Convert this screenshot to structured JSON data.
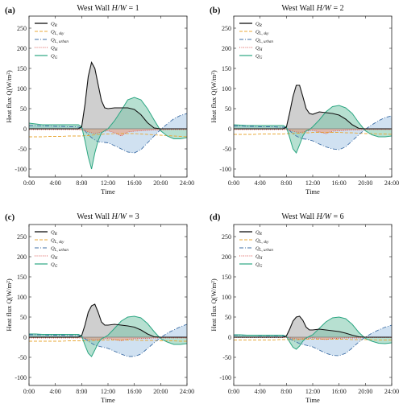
{
  "colors": {
    "QR": "#111111",
    "QL_sky": "#e8a93a",
    "QL_urban": "#3f6fa6",
    "QH": "#d9534f",
    "QG": "#2ca682",
    "QR_fill": "#a8a8a8",
    "QL_urban_fill": "#a9c9e6",
    "QG_fill": "#7cc7ac",
    "QH_fill": "#e8a387"
  },
  "chart_data": [
    {
      "type": "line",
      "letter": "(a)",
      "title_prefix": "West Wall ",
      "title_ratio": "H/W",
      "title_suffix": " = 1",
      "xlabel": "Time",
      "ylabel": "Heat flux Q(W/m²)",
      "xlim": [
        0,
        24
      ],
      "ylim": [
        -120,
        280
      ],
      "xticks": [
        "0:00",
        "4:00",
        "8:00",
        "12:00",
        "16:00",
        "20:00",
        "24:00"
      ],
      "yticks": [
        -100,
        -50,
        0,
        50,
        100,
        150,
        200,
        250
      ],
      "legend": [
        "QR",
        "QL, sky",
        "QL, urban",
        "QH",
        "QG"
      ],
      "x": [
        0,
        1,
        2,
        3,
        4,
        5,
        6,
        7,
        7.5,
        8,
        8.5,
        9,
        9.5,
        10,
        10.5,
        11,
        11.5,
        12,
        13,
        14,
        15,
        16,
        17,
        18,
        19,
        20,
        21,
        22,
        23,
        24
      ],
      "series": [
        {
          "key": "QR",
          "values": [
            0,
            0,
            0,
            0,
            0,
            0,
            0,
            0,
            0,
            5,
            60,
            130,
            165,
            150,
            110,
            70,
            52,
            50,
            52,
            52,
            52,
            48,
            35,
            15,
            2,
            0,
            0,
            0,
            0,
            0
          ]
        },
        {
          "key": "QL_sky",
          "values": [
            -20,
            -20,
            -20,
            -19,
            -19,
            -19,
            -18,
            -18,
            -18,
            -18,
            -17,
            -17,
            -16,
            -15,
            -14,
            -14,
            -13,
            -13,
            -12,
            -12,
            -12,
            -12,
            -13,
            -14,
            -15,
            -16,
            -17,
            -18,
            -19,
            -20
          ]
        },
        {
          "key": "QL_urban",
          "values": [
            8,
            8,
            7,
            7,
            6,
            6,
            5,
            5,
            4,
            3,
            -5,
            -15,
            -22,
            -28,
            -32,
            -33,
            -34,
            -35,
            -42,
            -50,
            -58,
            -60,
            -52,
            -35,
            -18,
            -2,
            12,
            25,
            33,
            38
          ]
        },
        {
          "key": "QH",
          "values": [
            -2,
            -2,
            -2,
            -2,
            -2,
            -2,
            -2,
            -2,
            -2,
            -3,
            -5,
            -8,
            -10,
            -12,
            -10,
            -8,
            -6,
            -5,
            -10,
            -18,
            -8,
            -6,
            -5,
            -4,
            -3,
            -3,
            -2,
            -2,
            -2,
            -2
          ]
        },
        {
          "key": "QG",
          "values": [
            14,
            12,
            10,
            10,
            10,
            10,
            10,
            10,
            10,
            5,
            -30,
            -70,
            -100,
            -60,
            -30,
            -10,
            -5,
            0,
            20,
            45,
            72,
            78,
            72,
            50,
            22,
            -5,
            -18,
            -25,
            -25,
            -22
          ]
        }
      ]
    },
    {
      "type": "line",
      "letter": "(b)",
      "title_prefix": "West Wall ",
      "title_ratio": "H/W",
      "title_suffix": " = 2",
      "xlabel": "Time",
      "ylabel": "Heat flux Q(W/m²)",
      "xlim": [
        0,
        24
      ],
      "ylim": [
        -120,
        280
      ],
      "xticks": [
        "0:00",
        "4:00",
        "8:00",
        "12:00",
        "16:00",
        "20:00",
        "24:00"
      ],
      "yticks": [
        -100,
        -50,
        0,
        50,
        100,
        150,
        200,
        250
      ],
      "legend": [
        "QR",
        "QL, sky",
        "QL, urban",
        "QH",
        "QG"
      ],
      "x": [
        0,
        1,
        2,
        3,
        4,
        5,
        6,
        7,
        7.5,
        8,
        8.5,
        9,
        9.5,
        10,
        10.5,
        11,
        11.5,
        12,
        13,
        14,
        15,
        16,
        17,
        18,
        19,
        20,
        21,
        22,
        23,
        24
      ],
      "series": [
        {
          "key": "QR",
          "values": [
            0,
            0,
            0,
            0,
            0,
            0,
            0,
            0,
            0,
            4,
            40,
            80,
            108,
            108,
            80,
            50,
            38,
            36,
            42,
            40,
            38,
            34,
            24,
            10,
            1,
            0,
            0,
            0,
            0,
            0
          ]
        },
        {
          "key": "QL_sky",
          "values": [
            -14,
            -14,
            -14,
            -14,
            -13,
            -13,
            -13,
            -13,
            -13,
            -12,
            -12,
            -12,
            -11,
            -11,
            -10,
            -10,
            -10,
            -9,
            -9,
            -9,
            -9,
            -9,
            -10,
            -10,
            -11,
            -12,
            -12,
            -13,
            -13,
            -14
          ]
        },
        {
          "key": "QL_urban",
          "values": [
            7,
            7,
            6,
            6,
            5,
            5,
            5,
            4,
            4,
            3,
            -5,
            -12,
            -18,
            -22,
            -25,
            -26,
            -28,
            -30,
            -38,
            -45,
            -50,
            -52,
            -45,
            -30,
            -15,
            -1,
            10,
            20,
            28,
            32
          ]
        },
        {
          "key": "QH",
          "values": [
            -2,
            -2,
            -2,
            -2,
            -2,
            -2,
            -2,
            -2,
            -2,
            -2,
            -4,
            -6,
            -8,
            -9,
            -8,
            -6,
            -5,
            -4,
            -8,
            -12,
            -6,
            -5,
            -4,
            -3,
            -3,
            -2,
            -2,
            -2,
            -2,
            -2
          ]
        },
        {
          "key": "QG",
          "values": [
            10,
            9,
            8,
            8,
            8,
            8,
            8,
            8,
            8,
            4,
            -22,
            -50,
            -60,
            -40,
            -18,
            -5,
            -2,
            5,
            22,
            42,
            55,
            58,
            52,
            38,
            15,
            -5,
            -15,
            -20,
            -20,
            -18
          ]
        }
      ]
    },
    {
      "type": "line",
      "letter": "(c)",
      "title_prefix": "West Wall ",
      "title_ratio": "H/W",
      "title_suffix": " = 3",
      "xlabel": "Time",
      "ylabel": "Heat flux Q(W/m²)",
      "xlim": [
        0,
        24
      ],
      "ylim": [
        -120,
        280
      ],
      "xticks": [
        "0:00",
        "4:00",
        "8:00",
        "12:00",
        "16:00",
        "20:00",
        "24:00"
      ],
      "yticks": [
        -100,
        -50,
        0,
        50,
        100,
        150,
        200,
        250
      ],
      "legend": [
        "QR",
        "QL, sky",
        "QL, urban",
        "QH",
        "QG"
      ],
      "x": [
        0,
        1,
        2,
        3,
        4,
        5,
        6,
        7,
        7.5,
        8,
        8.5,
        9,
        9.5,
        10,
        10.5,
        11,
        11.5,
        12,
        13,
        14,
        15,
        16,
        17,
        18,
        19,
        20,
        21,
        22,
        23,
        24
      ],
      "series": [
        {
          "key": "QR",
          "values": [
            0,
            0,
            0,
            0,
            0,
            0,
            0,
            0,
            0,
            4,
            30,
            62,
            78,
            82,
            62,
            38,
            30,
            30,
            32,
            30,
            28,
            25,
            18,
            8,
            1,
            0,
            0,
            0,
            0,
            0
          ]
        },
        {
          "key": "QL_sky",
          "values": [
            -10,
            -10,
            -10,
            -10,
            -10,
            -10,
            -9,
            -9,
            -9,
            -9,
            -9,
            -9,
            -8,
            -8,
            -8,
            -8,
            -7,
            -7,
            -7,
            -7,
            -7,
            -7,
            -8,
            -8,
            -8,
            -9,
            -9,
            -9,
            -10,
            -10
          ]
        },
        {
          "key": "QL_urban",
          "values": [
            6,
            6,
            6,
            5,
            5,
            5,
            4,
            4,
            4,
            3,
            -4,
            -10,
            -15,
            -20,
            -22,
            -24,
            -26,
            -28,
            -35,
            -42,
            -48,
            -48,
            -42,
            -28,
            -14,
            -1,
            10,
            18,
            26,
            32
          ]
        },
        {
          "key": "QH",
          "values": [
            -2,
            -2,
            -2,
            -2,
            -2,
            -2,
            -2,
            -2,
            -2,
            -2,
            -3,
            -5,
            -6,
            -7,
            -6,
            -5,
            -4,
            -3,
            -6,
            -9,
            -5,
            -4,
            -3,
            -3,
            -2,
            -2,
            -2,
            -2,
            -2,
            -2
          ]
        },
        {
          "key": "QG",
          "values": [
            8,
            8,
            7,
            7,
            7,
            7,
            7,
            7,
            7,
            3,
            -20,
            -40,
            -48,
            -32,
            -15,
            -4,
            0,
            5,
            22,
            40,
            50,
            52,
            48,
            34,
            14,
            -4,
            -12,
            -18,
            -18,
            -16
          ]
        }
      ]
    },
    {
      "type": "line",
      "letter": "(d)",
      "title_prefix": "West Wall ",
      "title_ratio": "H/W",
      "title_suffix": " = 6",
      "xlabel": "Time",
      "ylabel": "Heat flux Q(W/m²)",
      "xlim": [
        0,
        24
      ],
      "ylim": [
        -120,
        280
      ],
      "xticks": [
        "0:00",
        "4:00",
        "8:00",
        "12:00",
        "16:00",
        "20:00",
        "24:00"
      ],
      "yticks": [
        -100,
        -50,
        0,
        50,
        100,
        150,
        200,
        250
      ],
      "legend": [
        "QR",
        "QL, sky",
        "QL, urban",
        "QH",
        "QG"
      ],
      "x": [
        0,
        1,
        2,
        3,
        4,
        5,
        6,
        7,
        7.5,
        8,
        8.5,
        9,
        9.5,
        10,
        10.5,
        11,
        11.5,
        12,
        13,
        14,
        15,
        16,
        17,
        18,
        19,
        20,
        21,
        22,
        23,
        24
      ],
      "series": [
        {
          "key": "QR",
          "values": [
            0,
            0,
            0,
            0,
            0,
            0,
            0,
            0,
            0,
            3,
            20,
            40,
            50,
            52,
            42,
            25,
            18,
            18,
            20,
            18,
            16,
            14,
            10,
            5,
            1,
            0,
            0,
            0,
            0,
            0
          ]
        },
        {
          "key": "QL_sky",
          "values": [
            -7,
            -7,
            -7,
            -7,
            -7,
            -7,
            -7,
            -6,
            -6,
            -6,
            -6,
            -6,
            -6,
            -6,
            -5,
            -5,
            -5,
            -5,
            -5,
            -5,
            -5,
            -5,
            -5,
            -6,
            -6,
            -6,
            -6,
            -7,
            -7,
            -7
          ]
        },
        {
          "key": "QL_urban",
          "values": [
            5,
            5,
            5,
            5,
            4,
            4,
            4,
            4,
            3,
            2,
            -4,
            -8,
            -12,
            -16,
            -18,
            -20,
            -22,
            -24,
            -32,
            -40,
            -45,
            -46,
            -40,
            -27,
            -12,
            0,
            10,
            18,
            25,
            30
          ]
        },
        {
          "key": "QH",
          "values": [
            -1,
            -1,
            -1,
            -1,
            -1,
            -1,
            -1,
            -1,
            -1,
            -1,
            -2,
            -3,
            -4,
            -5,
            -4,
            -3,
            -3,
            -2,
            -4,
            -6,
            -3,
            -3,
            -2,
            -2,
            -2,
            -1,
            -1,
            -1,
            -1,
            -1
          ]
        },
        {
          "key": "QG",
          "values": [
            6,
            6,
            5,
            5,
            5,
            5,
            5,
            5,
            5,
            2,
            -12,
            -25,
            -30,
            -22,
            -10,
            -2,
            2,
            6,
            22,
            38,
            48,
            50,
            46,
            32,
            12,
            -3,
            -10,
            -15,
            -16,
            -14
          ]
        }
      ]
    }
  ]
}
